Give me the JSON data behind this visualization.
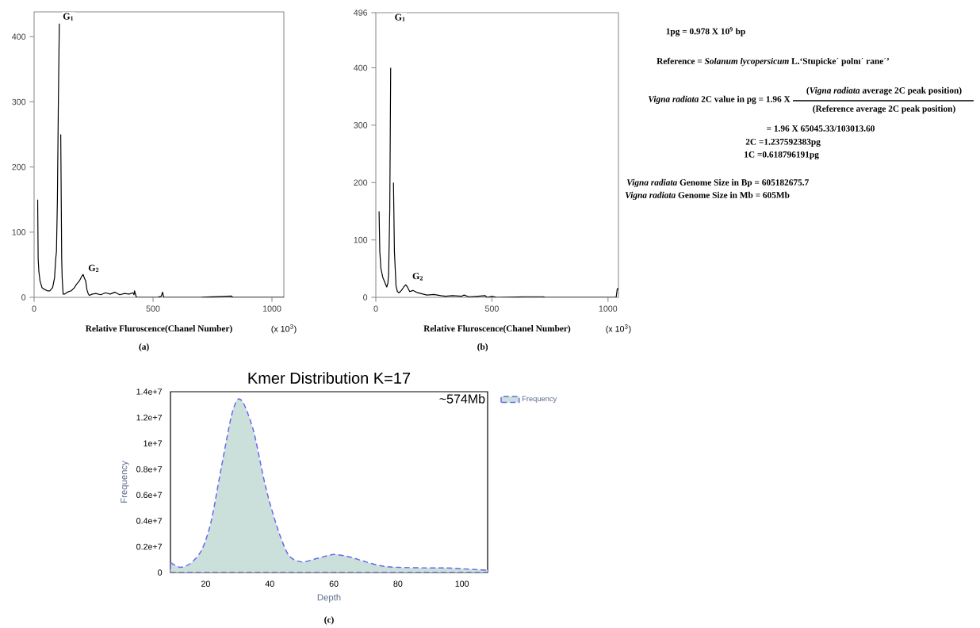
{
  "chart_data": [
    {
      "type": "line",
      "xlabel": "Relative Fluroscence(Chanel Number)",
      "color": "#000000",
      "xlim": [
        0,
        1050
      ],
      "ylim": [
        0,
        438
      ],
      "xticks": [
        0,
        500,
        1000
      ],
      "yticks": [
        0,
        100,
        200,
        300,
        400
      ],
      "x": [
        15,
        17,
        20,
        25,
        33,
        45,
        56,
        66,
        78,
        86,
        91,
        94,
        98,
        102,
        106,
        109,
        112,
        116,
        118,
        122,
        128,
        140,
        156,
        170,
        178,
        190,
        200,
        206,
        211,
        217,
        222,
        228,
        233,
        245,
        260,
        280,
        300,
        320,
        340,
        360,
        380,
        400,
        415,
        420,
        422,
        430,
        520,
        535,
        540,
        545,
        700,
        830,
        835,
        1050
      ],
      "values": [
        150,
        60,
        40,
        25,
        15,
        12,
        10,
        10,
        15,
        30,
        60,
        70,
        150,
        300,
        420,
        null,
        250,
        60,
        30,
        5,
        5,
        8,
        10,
        15,
        20,
        25,
        32,
        35,
        30,
        25,
        12,
        5,
        3,
        5,
        6,
        4,
        7,
        5,
        8,
        4,
        6,
        5,
        7,
        4,
        10,
        0,
        0,
        2,
        8,
        0,
        0,
        2,
        0,
        0
      ],
      "annotations": [
        "(x 10$^{3}$)",
        "(a)",
        "G$_{1}$",
        {
          "text": "G$_{2}$",
          "x": 200,
          "y": 32
        }
      ]
    },
    {
      "type": "line",
      "xlabel": "Relative Fluroscence(Chanel Number)",
      "color": "#000000",
      "xlim": [
        0,
        1045
      ],
      "ylim": [
        0,
        496
      ],
      "xticks": [
        0,
        500,
        1000
      ],
      "yticks": [
        0,
        100,
        200,
        300,
        400,
        496
      ],
      "x": [
        14,
        17,
        22,
        30,
        40,
        47,
        52,
        55,
        60,
        64,
        66,
        72,
        76,
        80,
        87,
        93,
        100,
        110,
        120,
        129,
        136,
        146,
        160,
        180,
        200,
        220,
        250,
        280,
        300,
        330,
        370,
        380,
        400,
        440,
        470,
        480,
        500,
        520,
        640,
        720,
        730,
        1035,
        1040,
        1045
      ],
      "values": [
        150,
        80,
        50,
        35,
        25,
        18,
        25,
        40,
        150,
        400,
        null,
        null,
        200,
        80,
        20,
        10,
        8,
        12,
        18,
        22,
        18,
        10,
        12,
        8,
        6,
        4,
        5,
        3,
        2,
        3,
        2,
        4,
        1,
        2,
        3,
        0,
        2,
        0,
        1,
        1,
        0,
        0,
        15,
        15
      ],
      "annotations": [
        "(x 10$^{3}$)",
        "(b)",
        "G$_{1}$",
        {
          "text": "G$_{2}$",
          "x": 129,
          "y": 22
        }
      ]
    },
    {
      "type": "other",
      "annotations": [
        "1pg = 0.978 X 10$^{9}$ bp",
        "Reference = *Solanum lycopersicum* L.‘Stupicke´ polnı´ rane´’",
        "*Vigna radiata* 2C value in pg  = 1.96 X",
        "(*Vigna radiata* average 2C peak position)",
        "(Reference average 2C peak position)",
        "= 1.96 X 65045.33/103013.60",
        "2C =1.237592383pg",
        "1C =0.618796191pg",
        "*Vigna radiata* Genome Size in Bp = 605182675.7",
        "*Vigna radiata* Genome Size in Mb = 605Mb"
      ]
    },
    {
      "type": "area",
      "title": "Kmer Distribution K=17",
      "xlabel": "Depth",
      "ylabel": "Frequency",
      "xlim": [
        9,
        108
      ],
      "ylim": [
        0,
        14000000
      ],
      "xticks": [
        20,
        40,
        60,
        80,
        100
      ],
      "yticks": [
        0,
        {
          "value": 2000000,
          "label": "0.2e+7"
        },
        {
          "value": 4000000,
          "label": "0.4e+7"
        },
        {
          "value": 6000000,
          "label": "0.6e+7"
        },
        {
          "value": 8000000,
          "label": "0.8e+7"
        },
        {
          "value": 10000000,
          "label": "1e+7"
        },
        {
          "value": 12000000,
          "label": "1.2e+7"
        },
        {
          "value": 14000000,
          "label": "1.4e+7"
        }
      ],
      "x": [
        9,
        12,
        15,
        18,
        20,
        22,
        25,
        28,
        30,
        32,
        35,
        38,
        40,
        43,
        46,
        50,
        55,
        60,
        65,
        70,
        75,
        80,
        90,
        95,
        100,
        105,
        108
      ],
      "series": [
        {
          "name": "Frequency",
          "color": "#cce0db",
          "values": [
            770000,
            400000,
            660000,
            1430000,
            2500000,
            4300000,
            8300000,
            12100000,
            13400000,
            13000000,
            10900000,
            7400000,
            5400000,
            3000000,
            1300000,
            820000,
            1100000,
            1390000,
            1200000,
            820000,
            500000,
            400000,
            350000,
            350000,
            290000,
            220000,
            180000
          ]
        }
      ],
      "line_style": "dashed",
      "legend": "right",
      "annotations": [
        "~574Mb",
        "(c)"
      ]
    }
  ]
}
